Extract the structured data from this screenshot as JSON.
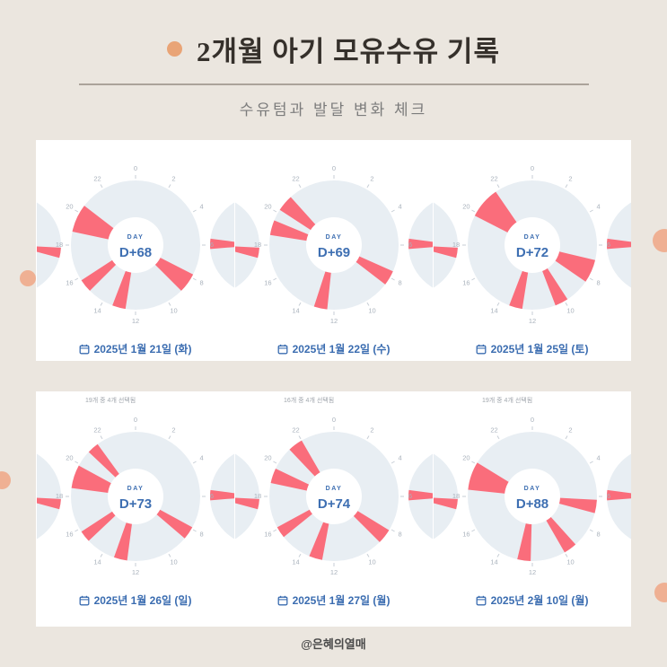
{
  "header": {
    "title": "2개월 아기 모유수유 기록",
    "subtitle": "수유텀과 발달 변화 체크"
  },
  "footer": {
    "credit": "@은혜의열매"
  },
  "colors": {
    "background": "#ebe6df",
    "panel": "#ffffff",
    "title_text": "#35302b",
    "accent_dot": "#e9a476",
    "deco_circle": "#efb093",
    "divider": "#aba39a",
    "subtitle_text": "#7c7c7c",
    "clock_face": "#e8eef3",
    "clock_tick": "#a9b2bc",
    "wedge": "#fa6d7b",
    "day_text": "#3e6fb2",
    "date_text": "#3a6cb0",
    "note_text": "#a0a6ad",
    "footer_text": "#4a4a4a"
  },
  "clock_config": {
    "hours_per_revolution": 24,
    "tick_label_step": 2,
    "tick_labels": [
      "0",
      "2",
      "4",
      "6",
      "8",
      "10",
      "12",
      "14",
      "16",
      "18",
      "20",
      "22"
    ],
    "center_label": "DAY"
  },
  "chart_data": [
    {
      "type": "radial-24h-feeding-clock",
      "day_value": "D+68",
      "date": "2025년 1월 21일 (화)",
      "selection_note": null,
      "feeding_wedges_hours": [
        [
          7.8,
          9.0
        ],
        [
          12.6,
          13.4
        ],
        [
          15.0,
          15.8
        ],
        [
          18.8,
          20.5
        ]
      ]
    },
    {
      "type": "radial-24h-feeding-clock",
      "day_value": "D+69",
      "date": "2025년 1월 22일 (수)",
      "selection_note": null,
      "feeding_wedges_hours": [
        [
          7.6,
          8.5
        ],
        [
          12.4,
          13.2
        ],
        [
          18.6,
          19.5
        ],
        [
          20.2,
          21.2
        ]
      ]
    },
    {
      "type": "radial-24h-feeding-clock",
      "day_value": "D+72",
      "date": "2025년 1월 25일 (토)",
      "selection_note": null,
      "feeding_wedges_hours": [
        [
          6.9,
          8.3
        ],
        [
          9.8,
          10.6
        ],
        [
          12.6,
          13.4
        ],
        [
          19.8,
          21.7
        ]
      ]
    },
    {
      "type": "radial-24h-feeding-clock",
      "day_value": "D+73",
      "date": "2025년 1월 26일 (일)",
      "selection_note": "19개 중 4개 선택됨",
      "feeding_wedges_hours": [
        [
          7.9,
          8.7
        ],
        [
          12.5,
          13.3
        ],
        [
          15.1,
          15.8
        ],
        [
          18.5,
          19.9
        ],
        [
          20.9,
          21.6
        ]
      ]
    },
    {
      "type": "radial-24h-feeding-clock",
      "day_value": "D+74",
      "date": "2025년 1월 27일 (월)",
      "selection_note": "16개 중 4개 선택됨",
      "feeding_wedges_hours": [
        [
          8.1,
          9.0
        ],
        [
          12.7,
          13.5
        ],
        [
          15.4,
          16.1
        ],
        [
          18.8,
          19.7
        ],
        [
          21.1,
          22.0
        ]
      ]
    },
    {
      "type": "radial-24h-feeding-clock",
      "day_value": "D+88",
      "date": "2025년 2월 10일 (월)",
      "selection_note": "19개 중 4개 선택됨",
      "feeding_wedges_hours": [
        [
          6.2,
          7.0
        ],
        [
          9.2,
          10.0
        ],
        [
          12.1,
          12.9
        ],
        [
          18.4,
          20.1
        ]
      ]
    }
  ]
}
